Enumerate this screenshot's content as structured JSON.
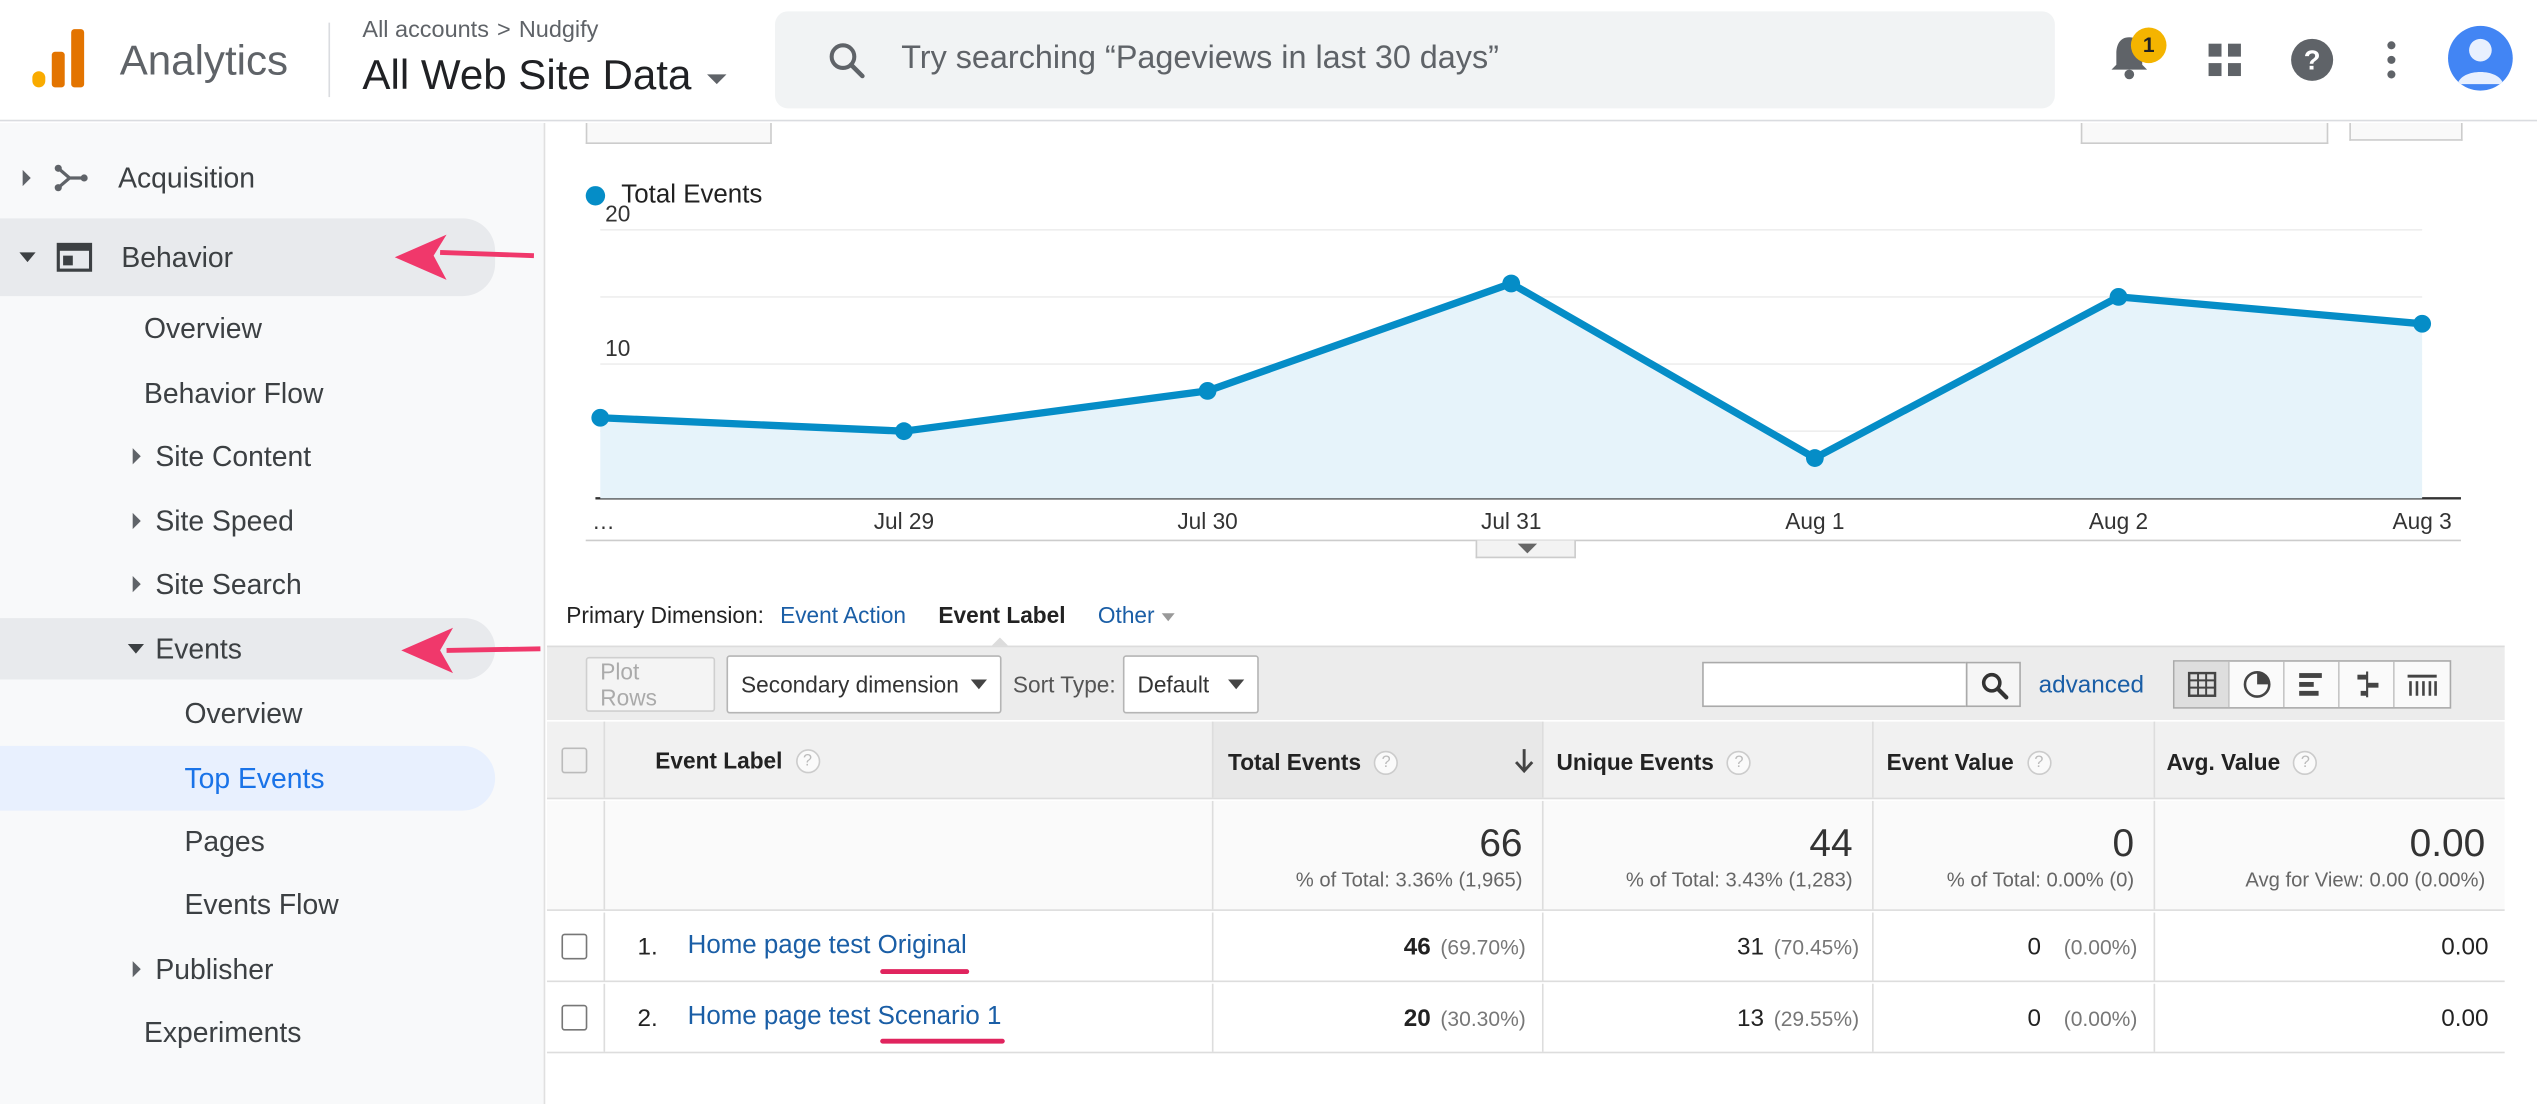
{
  "header": {
    "app_name": "Analytics",
    "breadcrumb": {
      "account": "All accounts",
      "separator": ">",
      "property": "Nudgify"
    },
    "view_name": "All Web Site Data",
    "search_placeholder": "Try searching “Pageviews in last 30 days”",
    "notifications_count": "1",
    "icons": [
      "search-icon",
      "bell-icon",
      "apps-grid-icon",
      "help-icon",
      "more-vert-icon",
      "avatar"
    ]
  },
  "sidebar": {
    "items": [
      {
        "label": "Acquisition",
        "icon": "acquisition-icon"
      },
      {
        "label": "Behavior",
        "icon": "behavior-icon"
      },
      {
        "label": "Overview"
      },
      {
        "label": "Behavior Flow"
      },
      {
        "label": "Site Content"
      },
      {
        "label": "Site Speed"
      },
      {
        "label": "Site Search"
      },
      {
        "label": "Events"
      },
      {
        "label": "Overview"
      },
      {
        "label": "Top Events"
      },
      {
        "label": "Pages"
      },
      {
        "label": "Events Flow"
      },
      {
        "label": "Publisher"
      },
      {
        "label": "Experiments"
      }
    ],
    "annotation_color": "#f0386b"
  },
  "chart_data": {
    "type": "area",
    "series": [
      {
        "name": "Total Events",
        "color": "#058dc7"
      }
    ],
    "categories": [
      "…",
      "",
      "Jul 29",
      "Jul 30",
      "Jul 31",
      "Aug 1",
      "Aug 2",
      "Aug 3"
    ],
    "x": [
      "…",
      "Jul 29",
      "Jul 30",
      "Jul 31",
      "Aug 1",
      "Aug 2",
      "Aug 3"
    ],
    "values": [
      6,
      5,
      8,
      16,
      3,
      15,
      13
    ],
    "ylim": [
      0,
      20
    ],
    "yticks": [
      "20",
      "10"
    ],
    "grid": true,
    "legend": "top-left"
  },
  "dimensions": {
    "label": "Primary Dimension:",
    "options": [
      "Event Action",
      "Event Label",
      "Other"
    ],
    "selected": "Event Label"
  },
  "toolbar": {
    "plot_rows": "Plot Rows",
    "secondary_dimension": "Secondary dimension",
    "sort_type_label": "Sort Type:",
    "sort_type_value": "Default",
    "advanced": "advanced"
  },
  "table": {
    "headers": [
      "Event Label",
      "Total Events",
      "Unique Events",
      "Event Value",
      "Avg. Value"
    ],
    "totals": [
      {
        "value": "66",
        "sub": "% of Total: 3.36% (1,965)"
      },
      {
        "value": "44",
        "sub": "% of Total: 3.43% (1,283)"
      },
      {
        "value": "0",
        "sub": "% of Total: 0.00% (0)"
      },
      {
        "value": "0.00",
        "sub": "Avg for View: 0.00 (0.00%)"
      }
    ],
    "rows": [
      {
        "num": "1.",
        "label": "Home page test Original",
        "total": "46",
        "total_pct": "(69.70%)",
        "unique": "31",
        "unique_pct": "(70.45%)",
        "value": "0",
        "value_pct": "(0.00%)",
        "avg": "0.00"
      },
      {
        "num": "2.",
        "label": "Home page test Scenario 1",
        "total": "20",
        "total_pct": "(30.30%)",
        "unique": "13",
        "unique_pct": "(29.55%)",
        "value": "0",
        "value_pct": "(0.00%)",
        "avg": "0.00"
      }
    ]
  }
}
